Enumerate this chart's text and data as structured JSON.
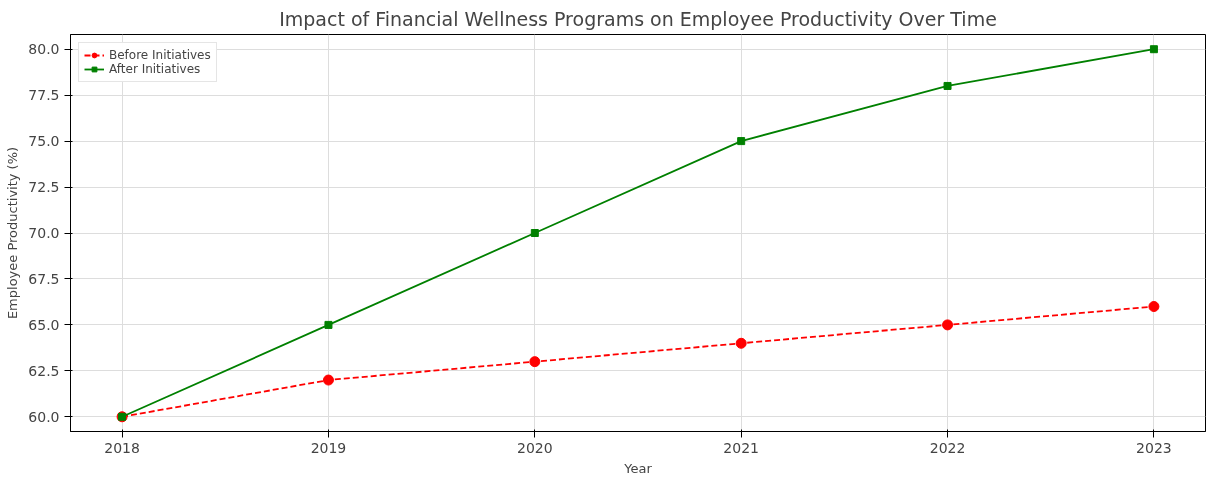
{
  "chart_data": {
    "type": "line",
    "title": "Impact of Financial Wellness Programs on Employee Productivity Over Time",
    "xlabel": "Year",
    "ylabel": "Employee Productivity (%)",
    "x": [
      2018,
      2019,
      2020,
      2021,
      2022,
      2023
    ],
    "series": [
      {
        "name": "Before Initiatives",
        "color": "#ff0000",
        "values": [
          60,
          62,
          63,
          64,
          65,
          66
        ],
        "marker": "circle",
        "line_style": "dashed"
      },
      {
        "name": "After Initiatives",
        "color": "#008000",
        "values": [
          60,
          65,
          70,
          75,
          78,
          80
        ],
        "marker": "square",
        "line_style": "solid"
      }
    ],
    "xlim": [
      2017.75,
      2023.25
    ],
    "ylim": [
      59.2,
      80.8
    ],
    "xticks": [
      2018,
      2019,
      2020,
      2021,
      2022,
      2023
    ],
    "yticks": [
      {
        "value": 60,
        "label": "60.0"
      },
      {
        "value": 62.5,
        "label": "62.5"
      },
      {
        "value": 65,
        "label": "65.0"
      },
      {
        "value": 67.5,
        "label": "67.5"
      },
      {
        "value": 70,
        "label": "70.0"
      },
      {
        "value": 72.5,
        "label": "72.5"
      },
      {
        "value": 75,
        "label": "75.0"
      },
      {
        "value": 77.5,
        "label": "77.5"
      },
      {
        "value": 80,
        "label": "80.0"
      }
    ],
    "grid": true,
    "legend": "top left"
  }
}
